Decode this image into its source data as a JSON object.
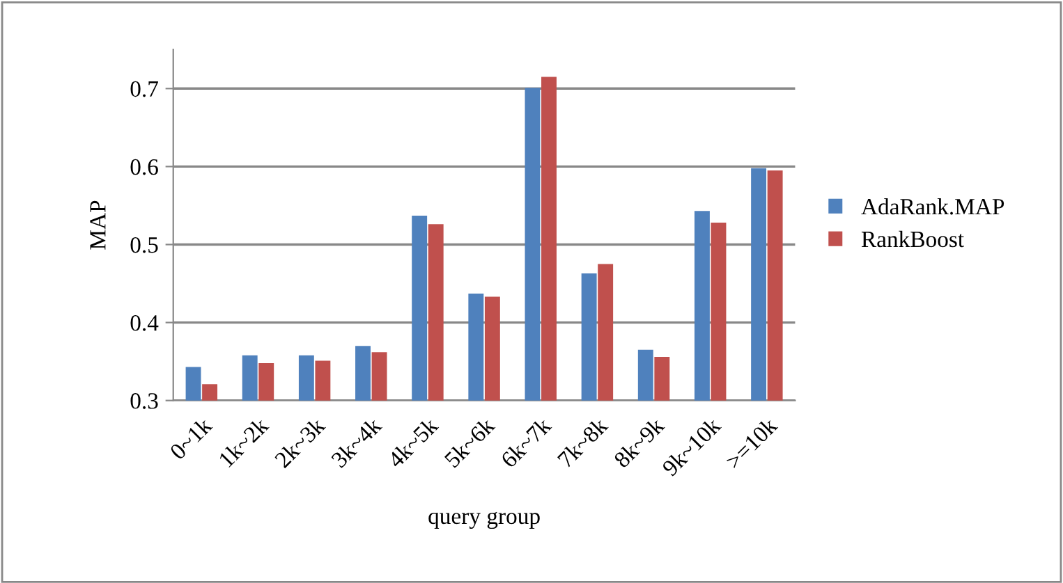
{
  "chart_data": {
    "type": "bar",
    "xlabel": "query group",
    "ylabel": "MAP",
    "categories": [
      "0~1k",
      "1k~2k",
      "2k~3k",
      "3k~4k",
      "4k~5k",
      "5k~6k",
      "6k~7k",
      "7k~8k",
      "8k~9k",
      "9k~10k",
      ">=10k"
    ],
    "series": [
      {
        "name": "AdaRank.MAP",
        "color": "#4f81bd",
        "values": [
          0.343,
          0.358,
          0.358,
          0.37,
          0.537,
          0.437,
          0.701,
          0.463,
          0.365,
          0.543,
          0.598
        ]
      },
      {
        "name": "RankBoost",
        "color": "#c0504d",
        "values": [
          0.321,
          0.348,
          0.351,
          0.362,
          0.526,
          0.433,
          0.715,
          0.475,
          0.356,
          0.528,
          0.595
        ]
      }
    ],
    "ylim": [
      0.3,
      0.75
    ],
    "yticks": [
      0.3,
      0.4,
      0.5,
      0.6,
      0.7
    ],
    "grid": "y",
    "legend": "right"
  }
}
